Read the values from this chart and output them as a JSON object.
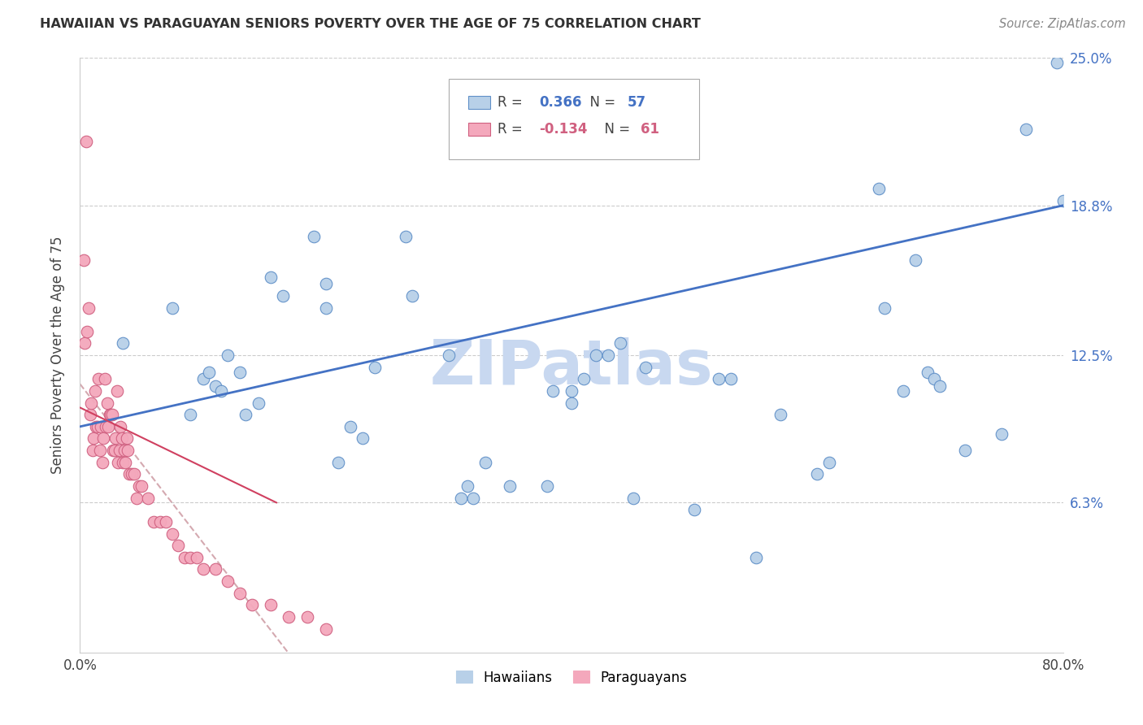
{
  "title": "HAWAIIAN VS PARAGUAYAN SENIORS POVERTY OVER THE AGE OF 75 CORRELATION CHART",
  "source": "Source: ZipAtlas.com",
  "ylabel": "Seniors Poverty Over the Age of 75",
  "xlim": [
    0,
    0.8
  ],
  "ylim": [
    0,
    0.25
  ],
  "ytick_right_labels": [
    "6.3%",
    "12.5%",
    "18.8%",
    "25.0%"
  ],
  "ytick_right_values": [
    0.063,
    0.125,
    0.188,
    0.25
  ],
  "hawaii_R": 0.366,
  "hawaii_N": 57,
  "paraguay_R": -0.134,
  "paraguay_N": 61,
  "hawaii_color": "#b8d0e8",
  "paraguay_color": "#f4a8bc",
  "hawaii_edge_color": "#6090c8",
  "paraguay_edge_color": "#d06080",
  "hawaii_line_color": "#4472c4",
  "paraguay_line_color": "#d0a0a8",
  "watermark": "ZIPatlas",
  "watermark_color": "#c8d8f0",
  "hawaii_x": [
    0.035,
    0.075,
    0.09,
    0.1,
    0.105,
    0.11,
    0.115,
    0.12,
    0.13,
    0.135,
    0.145,
    0.155,
    0.165,
    0.19,
    0.2,
    0.2,
    0.21,
    0.22,
    0.23,
    0.24,
    0.265,
    0.27,
    0.3,
    0.31,
    0.315,
    0.32,
    0.33,
    0.35,
    0.38,
    0.385,
    0.4,
    0.4,
    0.41,
    0.42,
    0.43,
    0.44,
    0.45,
    0.46,
    0.5,
    0.52,
    0.53,
    0.55,
    0.57,
    0.6,
    0.61,
    0.65,
    0.655,
    0.67,
    0.68,
    0.69,
    0.695,
    0.7,
    0.72,
    0.75,
    0.77,
    0.795,
    0.8
  ],
  "hawaii_y": [
    0.13,
    0.145,
    0.1,
    0.115,
    0.118,
    0.112,
    0.11,
    0.125,
    0.118,
    0.1,
    0.105,
    0.158,
    0.15,
    0.175,
    0.145,
    0.155,
    0.08,
    0.095,
    0.09,
    0.12,
    0.175,
    0.15,
    0.125,
    0.065,
    0.07,
    0.065,
    0.08,
    0.07,
    0.07,
    0.11,
    0.105,
    0.11,
    0.115,
    0.125,
    0.125,
    0.13,
    0.065,
    0.12,
    0.06,
    0.115,
    0.115,
    0.04,
    0.1,
    0.075,
    0.08,
    0.195,
    0.145,
    0.11,
    0.165,
    0.118,
    0.115,
    0.112,
    0.085,
    0.092,
    0.22,
    0.248,
    0.19
  ],
  "paraguay_x": [
    0.003,
    0.004,
    0.005,
    0.006,
    0.007,
    0.008,
    0.009,
    0.01,
    0.011,
    0.012,
    0.013,
    0.014,
    0.015,
    0.016,
    0.017,
    0.018,
    0.019,
    0.02,
    0.021,
    0.022,
    0.023,
    0.024,
    0.025,
    0.026,
    0.027,
    0.028,
    0.029,
    0.03,
    0.031,
    0.032,
    0.033,
    0.034,
    0.035,
    0.036,
    0.037,
    0.038,
    0.039,
    0.04,
    0.042,
    0.044,
    0.046,
    0.048,
    0.05,
    0.055,
    0.06,
    0.065,
    0.07,
    0.075,
    0.08,
    0.085,
    0.09,
    0.095,
    0.1,
    0.11,
    0.12,
    0.13,
    0.14,
    0.155,
    0.17,
    0.185,
    0.2
  ],
  "paraguay_y": [
    0.165,
    0.13,
    0.215,
    0.135,
    0.145,
    0.1,
    0.105,
    0.085,
    0.09,
    0.11,
    0.095,
    0.095,
    0.115,
    0.085,
    0.095,
    0.08,
    0.09,
    0.115,
    0.095,
    0.105,
    0.095,
    0.1,
    0.1,
    0.1,
    0.085,
    0.085,
    0.09,
    0.11,
    0.08,
    0.085,
    0.095,
    0.09,
    0.08,
    0.085,
    0.08,
    0.09,
    0.085,
    0.075,
    0.075,
    0.075,
    0.065,
    0.07,
    0.07,
    0.065,
    0.055,
    0.055,
    0.055,
    0.05,
    0.045,
    0.04,
    0.04,
    0.04,
    0.035,
    0.035,
    0.03,
    0.025,
    0.02,
    0.02,
    0.015,
    0.015,
    0.01
  ]
}
